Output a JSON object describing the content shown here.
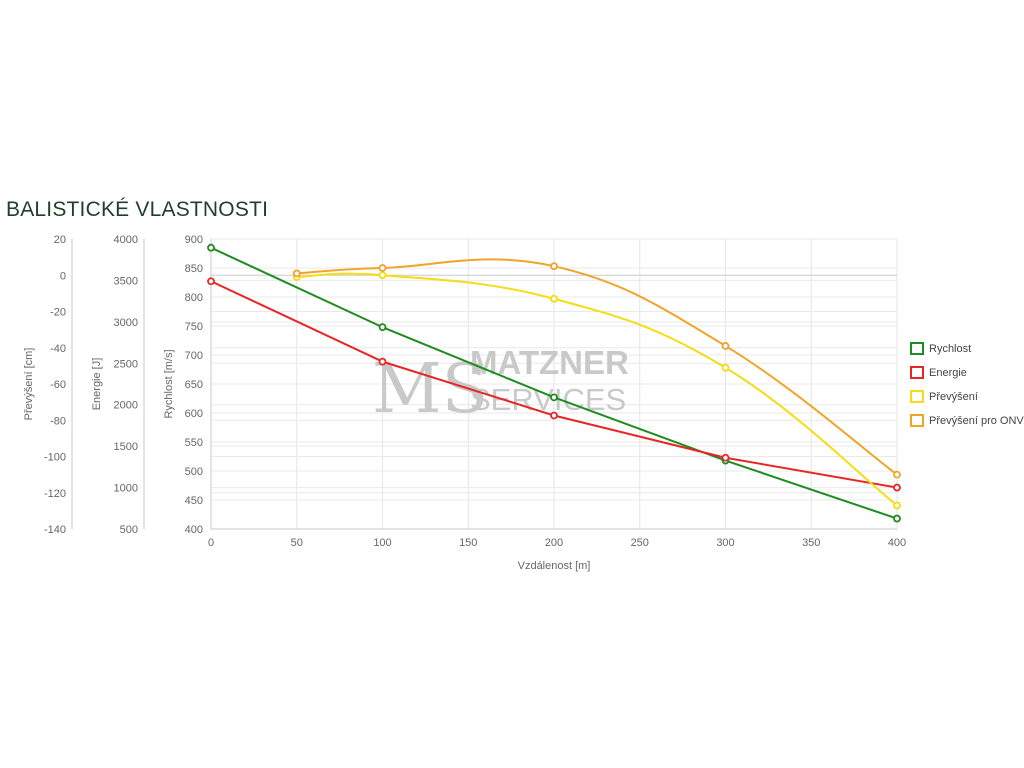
{
  "page": {
    "heading": "BALISTICKÉ VLASTNOSTI"
  },
  "watermark": {
    "monogram": "MS",
    "line1": "MATZNER",
    "line2": "SERVICES"
  },
  "chart_data": {
    "type": "line",
    "xlabel": "Vzdálenost [m]",
    "x_ticks": [
      "0",
      "50",
      "100",
      "150",
      "200",
      "250",
      "300",
      "350",
      "400"
    ],
    "xlim": [
      0,
      400
    ],
    "grid": true,
    "legend_position": "right",
    "axes": [
      {
        "id": "drop",
        "label": "Převýšení [cm]",
        "ylim": [
          -140,
          20
        ],
        "ticks": [
          "20",
          "0",
          "-20",
          "-40",
          "-60",
          "-80",
          "-100",
          "-120",
          "-140"
        ]
      },
      {
        "id": "energy",
        "label": "Energie [J]",
        "ylim": [
          500,
          4000
        ],
        "ticks": [
          "4000",
          "3500",
          "3000",
          "2500",
          "2000",
          "1500",
          "1000",
          "500"
        ]
      },
      {
        "id": "velocity",
        "label": "Rychlost [m/s]",
        "ylim": [
          400,
          900
        ],
        "ticks": [
          "900",
          "850",
          "800",
          "750",
          "700",
          "650",
          "600",
          "550",
          "500",
          "450",
          "400"
        ]
      }
    ],
    "series": [
      {
        "name": "Rychlost",
        "axis": "velocity",
        "color": "#1e8c1e",
        "x": [
          0,
          100,
          200,
          300,
          400
        ],
        "y": [
          885,
          748,
          627,
          518,
          418
        ]
      },
      {
        "name": "Energie",
        "axis": "energy",
        "color": "#e82626",
        "x": [
          0,
          100,
          200,
          300,
          400
        ],
        "y": [
          3490,
          2520,
          1870,
          1360,
          1000
        ]
      },
      {
        "name": "Převýšení",
        "axis": "drop",
        "color": "#f5dc14",
        "x": [
          50,
          100,
          200,
          300,
          400
        ],
        "y": [
          -1,
          0,
          -13,
          -51,
          -127
        ]
      },
      {
        "name": "Převýšení pro ONV",
        "axis": "drop",
        "color": "#f0a428",
        "x": [
          50,
          100,
          200,
          300,
          400
        ],
        "y": [
          1,
          4,
          5,
          -39,
          -110
        ]
      }
    ]
  }
}
